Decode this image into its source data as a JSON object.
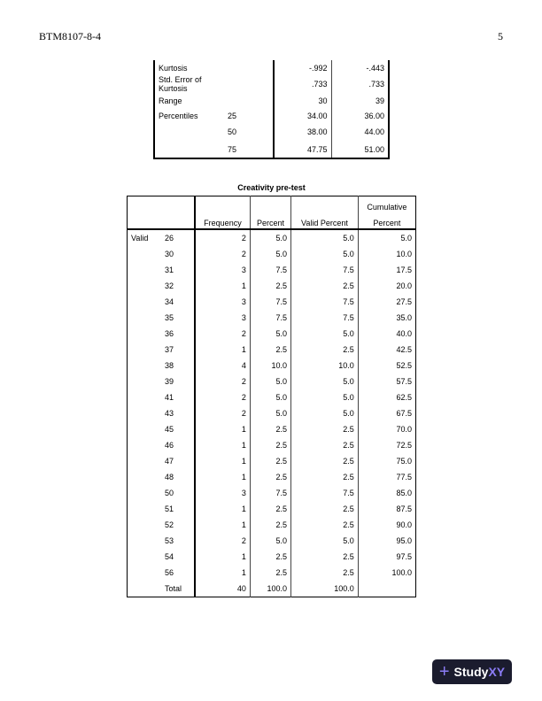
{
  "header": {
    "left": "BTM8107-8-4",
    "page": "5"
  },
  "stats": [
    [
      "Kurtosis",
      "",
      "-.992",
      "-.443"
    ],
    [
      "Std. Error of Kurtosis",
      "",
      ".733",
      ".733"
    ],
    [
      "Range",
      "",
      "30",
      "39"
    ],
    [
      "Percentiles",
      "25",
      "34.00",
      "36.00"
    ],
    [
      "",
      "50",
      "38.00",
      "44.00"
    ],
    [
      "",
      "75",
      "47.75",
      "51.00"
    ]
  ],
  "freq": {
    "title": "Creativity pre-test",
    "headers": [
      "Frequency",
      "Percent",
      "Valid Percent",
      "Cumulative",
      "Percent"
    ],
    "group": "Valid",
    "rows": [
      [
        "26",
        "2",
        "5.0",
        "5.0",
        "5.0"
      ],
      [
        "30",
        "2",
        "5.0",
        "5.0",
        "10.0"
      ],
      [
        "31",
        "3",
        "7.5",
        "7.5",
        "17.5"
      ],
      [
        "32",
        "1",
        "2.5",
        "2.5",
        "20.0"
      ],
      [
        "34",
        "3",
        "7.5",
        "7.5",
        "27.5"
      ],
      [
        "35",
        "3",
        "7.5",
        "7.5",
        "35.0"
      ],
      [
        "36",
        "2",
        "5.0",
        "5.0",
        "40.0"
      ],
      [
        "37",
        "1",
        "2.5",
        "2.5",
        "42.5"
      ],
      [
        "38",
        "4",
        "10.0",
        "10.0",
        "52.5"
      ],
      [
        "39",
        "2",
        "5.0",
        "5.0",
        "57.5"
      ],
      [
        "41",
        "2",
        "5.0",
        "5.0",
        "62.5"
      ],
      [
        "43",
        "2",
        "5.0",
        "5.0",
        "67.5"
      ],
      [
        "45",
        "1",
        "2.5",
        "2.5",
        "70.0"
      ],
      [
        "46",
        "1",
        "2.5",
        "2.5",
        "72.5"
      ],
      [
        "47",
        "1",
        "2.5",
        "2.5",
        "75.0"
      ],
      [
        "48",
        "1",
        "2.5",
        "2.5",
        "77.5"
      ],
      [
        "50",
        "3",
        "7.5",
        "7.5",
        "85.0"
      ],
      [
        "51",
        "1",
        "2.5",
        "2.5",
        "87.5"
      ],
      [
        "52",
        "1",
        "2.5",
        "2.5",
        "90.0"
      ],
      [
        "53",
        "2",
        "5.0",
        "5.0",
        "95.0"
      ],
      [
        "54",
        "1",
        "2.5",
        "2.5",
        "97.5"
      ],
      [
        "56",
        "1",
        "2.5",
        "2.5",
        "100.0"
      ],
      [
        "Total",
        "40",
        "100.0",
        "100.0",
        ""
      ]
    ]
  },
  "logo": {
    "text": "StudyXY",
    "colors": {
      "bg": "#1b1c2e",
      "accent": "#8b7cf6"
    }
  }
}
